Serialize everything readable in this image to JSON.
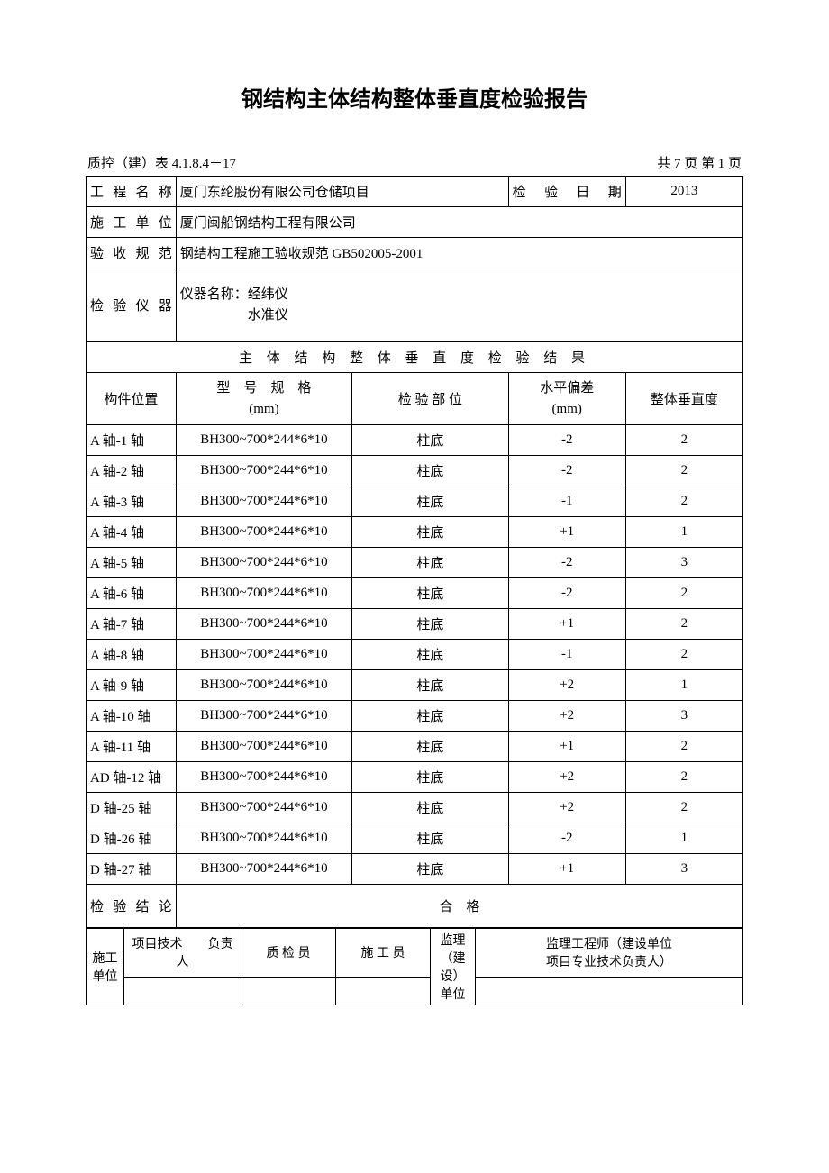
{
  "title": "钢结构主体结构整体垂直度检验报告",
  "header": {
    "form_code": "质控（建）表 4.1.8.4－17",
    "page_info": "共 7 页 第 1 页"
  },
  "info": {
    "project_name_label": "工程名称",
    "project_name": "厦门东纶股份有限公司仓储项目",
    "inspection_date_label": "检验日期",
    "inspection_date": "2013",
    "construction_unit_label": "施工单位",
    "construction_unit": "厦门闽船钢结构工程有限公司",
    "acceptance_spec_label": "验收规范",
    "acceptance_spec": "钢结构工程施工验收规范 GB502005-2001",
    "instrument_label": "检验仪器",
    "instrument_line1": "仪器名称：经纬仪",
    "instrument_line2": "水准仪"
  },
  "results_section_title": "主 体 结 构 整 体 垂 直 度 检 验 结 果",
  "columns": {
    "position": "构件位置",
    "model_line1": "型　号　规　格",
    "model_line2": "(mm)",
    "inspection_part": "检 验 部 位",
    "deviation_line1": "水平偏差",
    "deviation_line2": "(mm)",
    "verticality": "整体垂直度"
  },
  "rows": [
    {
      "position": "A 轴-1 轴",
      "model": "BH300~700*244*6*10",
      "part": "柱底",
      "deviation": "-2",
      "verticality": "2"
    },
    {
      "position": "A 轴-2 轴",
      "model": "BH300~700*244*6*10",
      "part": "柱底",
      "deviation": "-2",
      "verticality": "2"
    },
    {
      "position": "A 轴-3 轴",
      "model": "BH300~700*244*6*10",
      "part": "柱底",
      "deviation": "-1",
      "verticality": "2"
    },
    {
      "position": "A 轴-4 轴",
      "model": "BH300~700*244*6*10",
      "part": "柱底",
      "deviation": "+1",
      "verticality": "1"
    },
    {
      "position": "A 轴-5 轴",
      "model": "BH300~700*244*6*10",
      "part": "柱底",
      "deviation": "-2",
      "verticality": "3"
    },
    {
      "position": "A 轴-6 轴",
      "model": "BH300~700*244*6*10",
      "part": "柱底",
      "deviation": "-2",
      "verticality": "2"
    },
    {
      "position": "A 轴-7 轴",
      "model": "BH300~700*244*6*10",
      "part": "柱底",
      "deviation": "+1",
      "verticality": "2"
    },
    {
      "position": "A 轴-8 轴",
      "model": "BH300~700*244*6*10",
      "part": "柱底",
      "deviation": "-1",
      "verticality": "2"
    },
    {
      "position": "A 轴-9 轴",
      "model": "BH300~700*244*6*10",
      "part": "柱底",
      "deviation": "+2",
      "verticality": "1"
    },
    {
      "position": "A 轴-10 轴",
      "model": "BH300~700*244*6*10",
      "part": "柱底",
      "deviation": "+2",
      "verticality": "3"
    },
    {
      "position": "A 轴-11 轴",
      "model": "BH300~700*244*6*10",
      "part": "柱底",
      "deviation": "+1",
      "verticality": "2"
    },
    {
      "position": "AD 轴-12 轴",
      "model": "BH300~700*244*6*10",
      "part": "柱底",
      "deviation": "+2",
      "verticality": "2"
    },
    {
      "position": "D 轴-25 轴",
      "model": "BH300~700*244*6*10",
      "part": "柱底",
      "deviation": "+2",
      "verticality": "2"
    },
    {
      "position": "D 轴-26 轴",
      "model": "BH300~700*244*6*10",
      "part": "柱底",
      "deviation": "-2",
      "verticality": "1"
    },
    {
      "position": "D 轴-27 轴",
      "model": "BH300~700*244*6*10",
      "part": "柱底",
      "deviation": "+1",
      "verticality": "3"
    }
  ],
  "conclusion": {
    "label": "检验结论",
    "value": "合　格"
  },
  "signatures": {
    "construction_unit_label": "施工单位",
    "tech_leader": "项目技术　　负责人",
    "inspector": "质 检 员",
    "worker": "施 工 员",
    "supervision_unit_label": "监理（建设）单位",
    "supervision_engineer_line1": "监理工程师（建设单位",
    "supervision_engineer_line2": "项目专业技术负责人）"
  },
  "styling": {
    "page_bg": "#ffffff",
    "text_color": "#000000",
    "border_color": "#000000",
    "title_fontsize": 24,
    "body_fontsize": 15
  }
}
